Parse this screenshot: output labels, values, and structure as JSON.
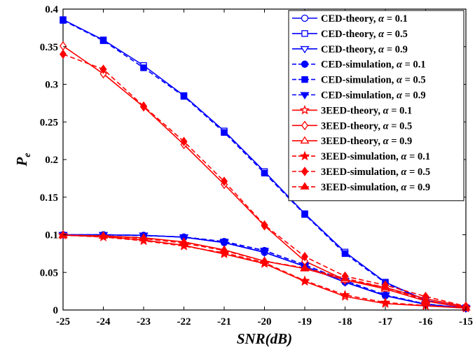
{
  "chart_data": {
    "type": "line",
    "xlabel": "SNR(dB)",
    "ylabel": "P",
    "ylabel_sub": "e",
    "xlim": [
      -25,
      -15
    ],
    "ylim": [
      0,
      0.4
    ],
    "xticks": [
      -25,
      -24,
      -23,
      -22,
      -21,
      -20,
      -19,
      -18,
      -17,
      -16,
      -15
    ],
    "yticks": [
      0,
      0.05,
      0.1,
      0.15,
      0.2,
      0.25,
      0.3,
      0.35,
      0.4
    ],
    "xtick_labels": [
      "-25",
      "-24",
      "-23",
      "-22",
      "-21",
      "-20",
      "-19",
      "-18",
      "-17",
      "-16",
      "-15"
    ],
    "ytick_labels": [
      "0",
      "0.05",
      "0.1",
      "0.15",
      "0.2",
      "0.25",
      "0.3",
      "0.35",
      "0.4"
    ],
    "grid": false,
    "legend_position": "top-right",
    "x": [
      -25,
      -24,
      -23,
      -22,
      -21,
      -20,
      -19,
      -18,
      -17,
      -16,
      -15
    ],
    "series": [
      {
        "name": "CED-theory, α = 0.1",
        "legend_prefix": "CED-theory, ",
        "legend_value": " = 0.1",
        "color": "#0000ff",
        "dash": "solid",
        "marker": "circle",
        "filled": false,
        "values": [
          0.1,
          0.0999,
          0.0993,
          0.0968,
          0.0896,
          0.0767,
          0.058,
          0.037,
          0.019,
          0.0075,
          0.0025
        ]
      },
      {
        "name": "CED-theory, α = 0.5",
        "legend_prefix": "CED-theory, ",
        "legend_value": " = 0.5",
        "color": "#0000ff",
        "dash": "solid",
        "marker": "square",
        "filled": false,
        "values": [
          0.386,
          0.359,
          0.325,
          0.285,
          0.238,
          0.184,
          0.128,
          0.077,
          0.037,
          0.013,
          0.003
        ]
      },
      {
        "name": "CED-theory, α = 0.9",
        "legend_prefix": "CED-theory, ",
        "legend_value": " = 0.9",
        "color": "#0000ff",
        "dash": "solid",
        "marker": "triangle-down",
        "filled": false,
        "values": [
          0.1,
          0.0999,
          0.0993,
          0.0968,
          0.0896,
          0.0767,
          0.058,
          0.037,
          0.019,
          0.0075,
          0.0025
        ]
      },
      {
        "name": "CED-simulation, α = 0.1",
        "legend_prefix": "CED-simulation, ",
        "legend_value": " = 0.1",
        "color": "#0000ff",
        "dash": "dashed",
        "marker": "circle",
        "filled": true,
        "values": [
          0.1,
          0.1,
          0.099,
          0.097,
          0.091,
          0.079,
          0.06,
          0.039,
          0.02,
          0.008,
          0.0025
        ]
      },
      {
        "name": "CED-simulation, α = 0.5",
        "legend_prefix": "CED-simulation, ",
        "legend_value": " = 0.5",
        "color": "#0000ff",
        "dash": "dashed",
        "marker": "square",
        "filled": true,
        "values": [
          0.385,
          0.358,
          0.322,
          0.284,
          0.236,
          0.182,
          0.127,
          0.075,
          0.036,
          0.012,
          0.003
        ]
      },
      {
        "name": "CED-simulation, α = 0.9",
        "legend_prefix": "CED-simulation, ",
        "legend_value": " = 0.9",
        "color": "#0000ff",
        "dash": "dashed",
        "marker": "triangle-down",
        "filled": true,
        "values": [
          0.1,
          0.1,
          0.099,
          0.097,
          0.091,
          0.079,
          0.06,
          0.039,
          0.02,
          0.008,
          0.0025
        ]
      },
      {
        "name": "3EED-theory, α = 0.1",
        "legend_prefix": "3EED-theory, ",
        "legend_value": " = 0.1",
        "color": "#ff0000",
        "dash": "solid",
        "marker": "star",
        "filled": false,
        "values": [
          0.0995,
          0.0975,
          0.093,
          0.086,
          0.0745,
          0.0617,
          0.038,
          0.018,
          0.0085,
          0.0055,
          0.0025
        ]
      },
      {
        "name": "3EED-theory, α = 0.5",
        "legend_prefix": "3EED-theory, ",
        "legend_value": " = 0.5",
        "color": "#ff0000",
        "dash": "solid",
        "marker": "diamond",
        "filled": false,
        "values": [
          0.351,
          0.314,
          0.27,
          0.22,
          0.167,
          0.112,
          0.065,
          0.04,
          0.03,
          0.015,
          0.0045
        ]
      },
      {
        "name": "3EED-theory, α = 0.9",
        "legend_prefix": "3EED-theory, ",
        "legend_value": " = 0.9",
        "color": "#ff0000",
        "dash": "solid",
        "marker": "triangle-up",
        "filled": false,
        "values": [
          0.0995,
          0.0985,
          0.096,
          0.0905,
          0.08,
          0.065,
          0.055,
          0.04,
          0.028,
          0.012,
          0.003
        ]
      },
      {
        "name": "3EED-simulation, α = 0.1",
        "legend_prefix": "3EED-simulation, ",
        "legend_value": " = 0.1",
        "color": "#ff0000",
        "dash": "dashed",
        "marker": "star",
        "filled": true,
        "values": [
          0.0995,
          0.097,
          0.092,
          0.085,
          0.076,
          0.063,
          0.039,
          0.02,
          0.01,
          0.006,
          0.0025
        ]
      },
      {
        "name": "3EED-simulation, α = 0.5",
        "legend_prefix": "3EED-simulation, ",
        "legend_value": " = 0.5",
        "color": "#ff0000",
        "dash": "dashed",
        "marker": "diamond",
        "filled": true,
        "values": [
          0.34,
          0.32,
          0.271,
          0.224,
          0.171,
          0.113,
          0.071,
          0.045,
          0.033,
          0.018,
          0.005
        ]
      },
      {
        "name": "3EED-simulation, α = 0.9",
        "legend_prefix": "3EED-simulation, ",
        "legend_value": " = 0.9",
        "color": "#ff0000",
        "dash": "dashed",
        "marker": "triangle-up",
        "filled": true,
        "values": [
          0.099,
          0.0985,
          0.095,
          0.089,
          0.079,
          0.065,
          0.056,
          0.042,
          0.03,
          0.013,
          0.003
        ]
      }
    ]
  }
}
